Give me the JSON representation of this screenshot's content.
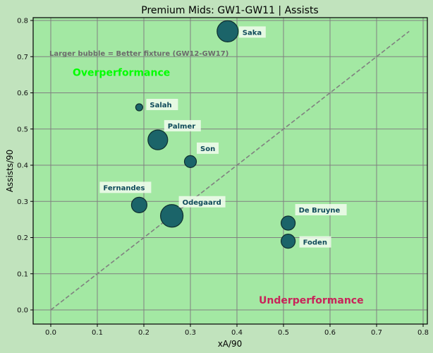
{
  "chart_data": {
    "type": "scatter",
    "title": "Premium Mids: GW1-GW11 | Assists",
    "xlabel": "xA/90",
    "ylabel": "Assists/90",
    "xlim": [
      -0.035,
      0.81
    ],
    "ylim": [
      -0.04,
      0.81
    ],
    "xticks": [
      "0.0",
      "0.1",
      "0.2",
      "0.3",
      "0.4",
      "0.5",
      "0.6",
      "0.7",
      "0.8"
    ],
    "yticks": [
      "0.0",
      "0.1",
      "0.2",
      "0.3",
      "0.4",
      "0.5",
      "0.6",
      "0.7",
      "0.8"
    ],
    "grid": true,
    "bubble_size_meaning": "Better fixture (GW12-GW17)",
    "points": [
      {
        "name": "Saka",
        "x": 0.38,
        "y": 0.77,
        "size_r": 15
      },
      {
        "name": "Salah",
        "x": 0.19,
        "y": 0.56,
        "size_r": 5
      },
      {
        "name": "Palmer",
        "x": 0.23,
        "y": 0.47,
        "size_r": 14
      },
      {
        "name": "Son",
        "x": 0.3,
        "y": 0.41,
        "size_r": 8.5
      },
      {
        "name": "Fernandes",
        "x": 0.19,
        "y": 0.29,
        "size_r": 11
      },
      {
        "name": "Odegaard",
        "x": 0.26,
        "y": 0.26,
        "size_r": 16
      },
      {
        "name": "De Bruyne",
        "x": 0.51,
        "y": 0.24,
        "size_r": 10
      },
      {
        "name": "Foden",
        "x": 0.51,
        "y": 0.19,
        "size_r": 10
      }
    ],
    "reference_line": {
      "style": "dashed",
      "from": [
        0.0,
        0.0
      ],
      "to": [
        0.77,
        0.77
      ],
      "color": "#808080"
    },
    "annotations": [
      {
        "text": "Larger bubble = Better fixture (GW12-GW17)",
        "x": 0.0,
        "y": 0.71,
        "color": "#6b6b6b"
      },
      {
        "text": "Overperformance",
        "x": 0.05,
        "y": 0.655,
        "color": "#00ff00"
      },
      {
        "text": "Underperformance",
        "x": 0.45,
        "y": 0.025,
        "color": "#c8245a"
      }
    ]
  },
  "colors": {
    "figure_bg": "#c1e3bd",
    "plot_bg": "#a3e8a3",
    "bubble_fill": "#1b6469",
    "bubble_edge": "#0e2f2f",
    "label_text": "#0f4a5a",
    "label_box": "#f2fbef",
    "grid": "#808080"
  }
}
